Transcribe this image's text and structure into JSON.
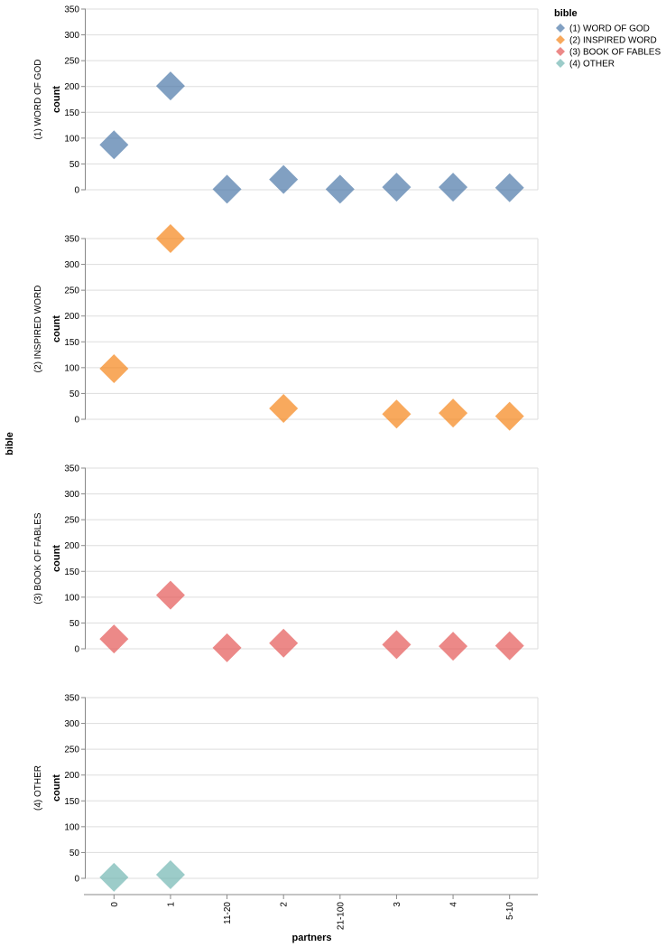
{
  "chart_data": {
    "type": "scatter",
    "mark": "diamond",
    "row_field_title": "bible",
    "xlabel": "partners",
    "ylabel": "count",
    "categories": [
      "0",
      "1",
      "11-20",
      "2",
      "21-100",
      "3",
      "4",
      "5-10"
    ],
    "ylim": [
      0,
      350
    ],
    "yticks": [
      0,
      50,
      100,
      150,
      200,
      250,
      300,
      350
    ],
    "grid": true,
    "legend": {
      "title": "bible",
      "placement": "top-right",
      "entries": [
        "(1) WORD OF GOD",
        "(2) INSPIRED WORD",
        "(3) BOOK OF FABLES",
        "(4) OTHER"
      ]
    },
    "series": [
      {
        "name": "(1) WORD OF GOD",
        "color": "#4c78a8",
        "points": [
          {
            "x": "0",
            "y": 87
          },
          {
            "x": "1",
            "y": 201
          },
          {
            "x": "11-20",
            "y": 1
          },
          {
            "x": "2",
            "y": 20
          },
          {
            "x": "21-100",
            "y": 1
          },
          {
            "x": "3",
            "y": 5
          },
          {
            "x": "4",
            "y": 5
          },
          {
            "x": "5-10",
            "y": 4
          }
        ]
      },
      {
        "name": "(2) INSPIRED WORD",
        "color": "#f58518",
        "points": [
          {
            "x": "0",
            "y": 98
          },
          {
            "x": "1",
            "y": 350
          },
          {
            "x": "2",
            "y": 21
          },
          {
            "x": "3",
            "y": 10
          },
          {
            "x": "4",
            "y": 12
          },
          {
            "x": "5-10",
            "y": 6
          }
        ]
      },
      {
        "name": "(3) BOOK OF FABLES",
        "color": "#e45756",
        "points": [
          {
            "x": "0",
            "y": 19
          },
          {
            "x": "1",
            "y": 104
          },
          {
            "x": "11-20",
            "y": 2
          },
          {
            "x": "2",
            "y": 11
          },
          {
            "x": "3",
            "y": 8
          },
          {
            "x": "4",
            "y": 5
          },
          {
            "x": "5-10",
            "y": 6
          }
        ]
      },
      {
        "name": "(4) OTHER",
        "color": "#72b7b2",
        "points": [
          {
            "x": "0",
            "y": 2
          },
          {
            "x": "1",
            "y": 7
          }
        ]
      }
    ]
  }
}
